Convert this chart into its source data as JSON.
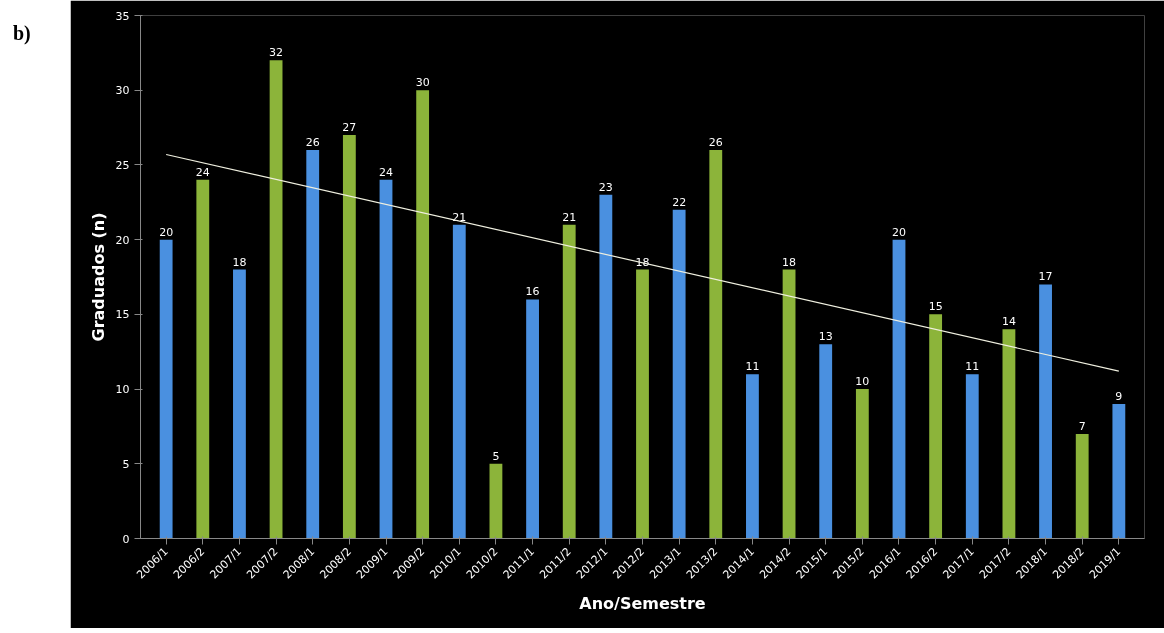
{
  "chart_data": {
    "type": "bar",
    "categories": [
      "2006/1",
      "2006/2",
      "2007/1",
      "2007/2",
      "2008/1",
      "2008/2",
      "2009/1",
      "2009/2",
      "2010/1",
      "2010/2",
      "2011/1",
      "2011/2",
      "2012/1",
      "2012/2",
      "2013/1",
      "2013/2",
      "2014/1",
      "2014/2",
      "2015/1",
      "2015/2",
      "2016/1",
      "2016/2",
      "2017/1",
      "2017/2",
      "2018/1",
      "2018/2",
      "2019/1"
    ],
    "series": [
      {
        "values": [
          20,
          24,
          18,
          32,
          26,
          27,
          24,
          30,
          21,
          5,
          16,
          21,
          23,
          18,
          22,
          26,
          11,
          18,
          13,
          10,
          20,
          15,
          11,
          14,
          17,
          7,
          9
        ],
        "value_labels": [
          "20",
          "24",
          "18",
          "32",
          "26",
          "27",
          "24",
          "30",
          "21",
          "5",
          "16",
          "21",
          "23",
          "18",
          "22",
          "26",
          "11",
          "18",
          "13",
          "10",
          "20",
          "15",
          "11",
          "14",
          "17",
          "7",
          "9"
        ],
        "colors": [
          "#4a90e0",
          "#8cb43a",
          "#4a90e0",
          "#8cb43a",
          "#4a90e0",
          "#8cb43a",
          "#4a90e0",
          "#8cb43a",
          "#4a90e0",
          "#8cb43a",
          "#4a90e0",
          "#8cb43a",
          "#4a90e0",
          "#8cb43a",
          "#4a90e0",
          "#8cb43a",
          "#4a90e0",
          "#8cb43a",
          "#4a90e0",
          "#8cb43a",
          "#4a90e0",
          "#8cb43a",
          "#4a90e0",
          "#8cb43a",
          "#4a90e0",
          "#8cb43a",
          "#4a90e0"
        ]
      },
      {
        "type": "line",
        "color": "#f0f0e0",
        "x": [
          "2006/1",
          "2019/1"
        ],
        "values": [
          25.7,
          11.2
        ]
      }
    ],
    "xlabel": "Ano/Semestre",
    "ylabel": "Graduados (n)",
    "ylim": [
      0,
      35
    ],
    "yticks": [
      0,
      5,
      10,
      15,
      20,
      25,
      30,
      35
    ],
    "grid": false,
    "annotations": [
      "b)"
    ]
  }
}
